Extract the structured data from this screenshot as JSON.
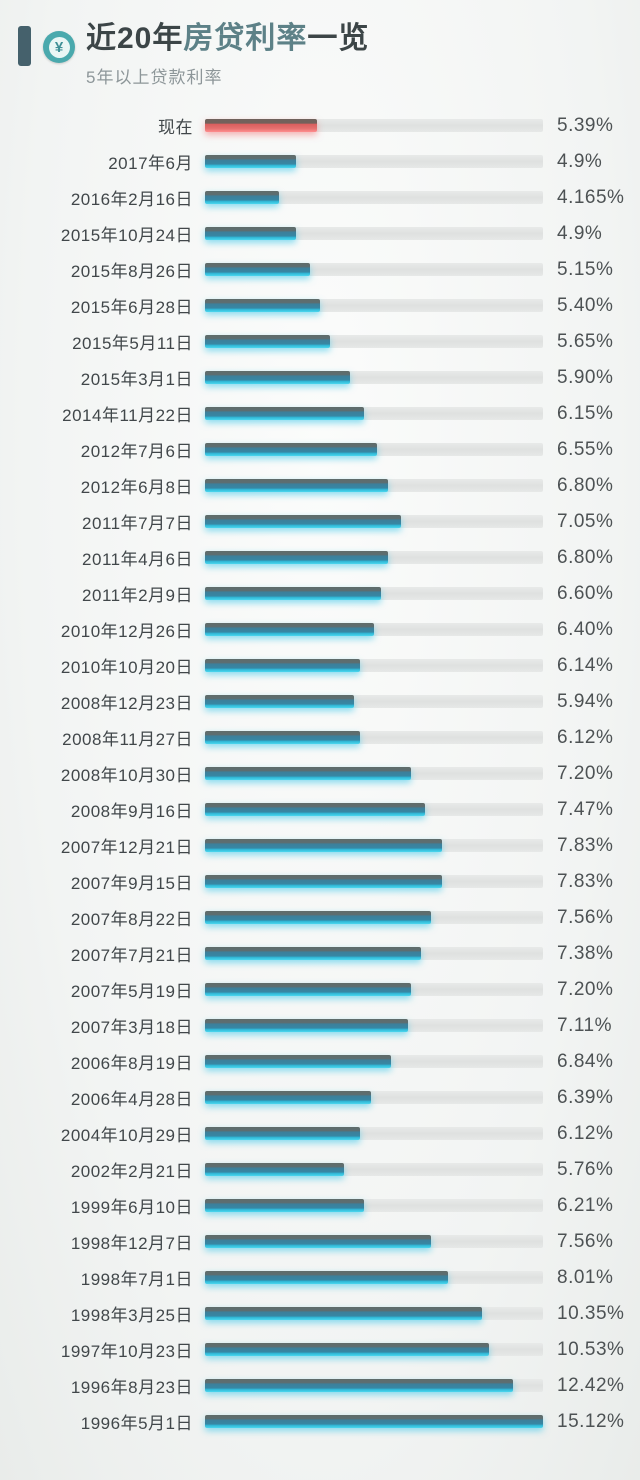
{
  "header": {
    "title_prefix": "近20年",
    "title_highlight": "房贷利率",
    "title_suffix": "一览",
    "subtitle": "5年以上贷款利率",
    "coin_symbol": "¥"
  },
  "colors": {
    "accent_bar": "#45616c",
    "coin_bg": "#4aa9ad",
    "coin_symbol": "#3f8f96",
    "title_dark": "#3c4547",
    "title_highlight": "#5d8187",
    "bar_teal": "#3d7f99",
    "bar_teal_glow": "#3fc8ea",
    "bar_red": "#e4706e",
    "track": "#e2e4e3"
  },
  "chart_data": {
    "type": "bar",
    "orientation": "horizontal",
    "title": "近20年房贷利率一览",
    "subtitle": "5年以上贷款利率",
    "value_suffix": "%",
    "xlim": [
      0,
      15.12
    ],
    "grid": false,
    "legend": "none",
    "highlight_label": "现在",
    "rows": [
      {
        "label": "现在",
        "value": 5.39,
        "value_label": "5.39%",
        "bar_pct": 33,
        "highlight": true
      },
      {
        "label": "2017年6月",
        "value": 4.9,
        "value_label": "4.9%",
        "bar_pct": 27,
        "highlight": false
      },
      {
        "label": "2016年2月16日",
        "value": 4.165,
        "value_label": "4.165%",
        "bar_pct": 22,
        "highlight": false
      },
      {
        "label": "2015年10月24日",
        "value": 4.9,
        "value_label": "4.9%",
        "bar_pct": 27,
        "highlight": false
      },
      {
        "label": "2015年8月26日",
        "value": 5.15,
        "value_label": "5.15%",
        "bar_pct": 31,
        "highlight": false
      },
      {
        "label": "2015年6月28日",
        "value": 5.4,
        "value_label": "5.40%",
        "bar_pct": 34,
        "highlight": false
      },
      {
        "label": "2015年5月11日",
        "value": 5.65,
        "value_label": "5.65%",
        "bar_pct": 37,
        "highlight": false
      },
      {
        "label": "2015年3月1日",
        "value": 5.9,
        "value_label": "5.90%",
        "bar_pct": 43,
        "highlight": false
      },
      {
        "label": "2014年11月22日",
        "value": 6.15,
        "value_label": "6.15%",
        "bar_pct": 47,
        "highlight": false
      },
      {
        "label": "2012年7月6日",
        "value": 6.55,
        "value_label": "6.55%",
        "bar_pct": 51,
        "highlight": false
      },
      {
        "label": "2012年6月8日",
        "value": 6.8,
        "value_label": "6.80%",
        "bar_pct": 54,
        "highlight": false
      },
      {
        "label": "2011年7月7日",
        "value": 7.05,
        "value_label": "7.05%",
        "bar_pct": 58,
        "highlight": false
      },
      {
        "label": "2011年4月6日",
        "value": 6.8,
        "value_label": "6.80%",
        "bar_pct": 54,
        "highlight": false
      },
      {
        "label": "2011年2月9日",
        "value": 6.6,
        "value_label": "6.60%",
        "bar_pct": 52,
        "highlight": false
      },
      {
        "label": "2010年12月26日",
        "value": 6.4,
        "value_label": "6.40%",
        "bar_pct": 50,
        "highlight": false
      },
      {
        "label": "2010年10月20日",
        "value": 6.14,
        "value_label": "6.14%",
        "bar_pct": 46,
        "highlight": false
      },
      {
        "label": "2008年12月23日",
        "value": 5.94,
        "value_label": "5.94%",
        "bar_pct": 44,
        "highlight": false
      },
      {
        "label": "2008年11月27日",
        "value": 6.12,
        "value_label": "6.12%",
        "bar_pct": 46,
        "highlight": false
      },
      {
        "label": "2008年10月30日",
        "value": 7.2,
        "value_label": "7.20%",
        "bar_pct": 61,
        "highlight": false
      },
      {
        "label": "2008年9月16日",
        "value": 7.47,
        "value_label": "7.47%",
        "bar_pct": 65,
        "highlight": false
      },
      {
        "label": "2007年12月21日",
        "value": 7.83,
        "value_label": "7.83%",
        "bar_pct": 70,
        "highlight": false
      },
      {
        "label": "2007年9月15日",
        "value": 7.83,
        "value_label": "7.83%",
        "bar_pct": 70,
        "highlight": false
      },
      {
        "label": "2007年8月22日",
        "value": 7.56,
        "value_label": "7.56%",
        "bar_pct": 67,
        "highlight": false
      },
      {
        "label": "2007年7月21日",
        "value": 7.38,
        "value_label": "7.38%",
        "bar_pct": 64,
        "highlight": false
      },
      {
        "label": "2007年5月19日",
        "value": 7.2,
        "value_label": "7.20%",
        "bar_pct": 61,
        "highlight": false
      },
      {
        "label": "2007年3月18日",
        "value": 7.11,
        "value_label": "7.11%",
        "bar_pct": 60,
        "highlight": false
      },
      {
        "label": "2006年8月19日",
        "value": 6.84,
        "value_label": "6.84%",
        "bar_pct": 55,
        "highlight": false
      },
      {
        "label": "2006年4月28日",
        "value": 6.39,
        "value_label": "6.39%",
        "bar_pct": 49,
        "highlight": false
      },
      {
        "label": "2004年10月29日",
        "value": 6.12,
        "value_label": "6.12%",
        "bar_pct": 46,
        "highlight": false
      },
      {
        "label": "2002年2月21日",
        "value": 5.76,
        "value_label": "5.76%",
        "bar_pct": 41,
        "highlight": false
      },
      {
        "label": "1999年6月10日",
        "value": 6.21,
        "value_label": "6.21%",
        "bar_pct": 47,
        "highlight": false
      },
      {
        "label": "1998年12月7日",
        "value": 7.56,
        "value_label": "7.56%",
        "bar_pct": 67,
        "highlight": false
      },
      {
        "label": "1998年7月1日",
        "value": 8.01,
        "value_label": "8.01%",
        "bar_pct": 72,
        "highlight": false
      },
      {
        "label": "1998年3月25日",
        "value": 10.35,
        "value_label": "10.35%",
        "bar_pct": 82,
        "highlight": false
      },
      {
        "label": "1997年10月23日",
        "value": 10.53,
        "value_label": "10.53%",
        "bar_pct": 84,
        "highlight": false
      },
      {
        "label": "1996年8月23日",
        "value": 12.42,
        "value_label": "12.42%",
        "bar_pct": 91,
        "highlight": false
      },
      {
        "label": "1996年5月1日",
        "value": 15.12,
        "value_label": "15.12%",
        "bar_pct": 100,
        "highlight": false
      }
    ]
  }
}
